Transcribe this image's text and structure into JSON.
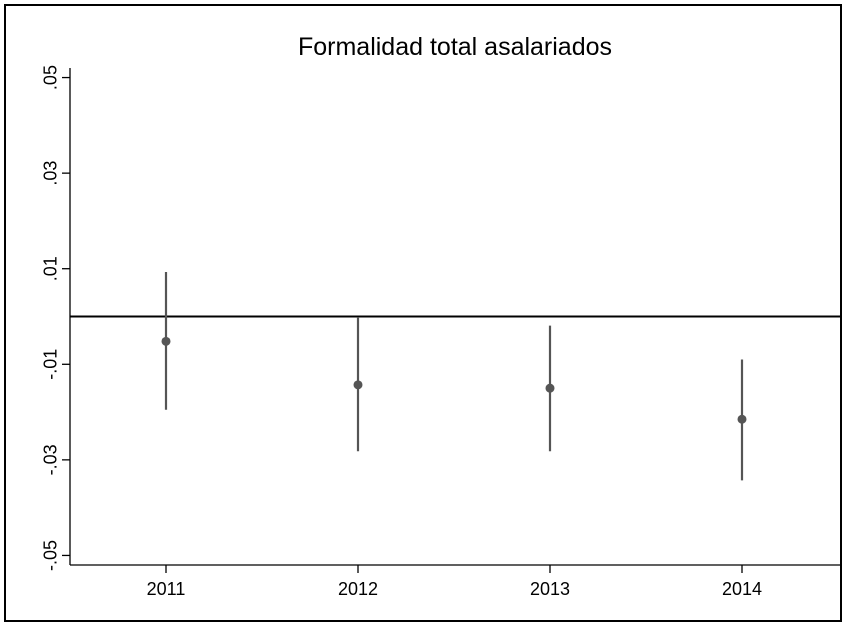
{
  "chart_data": {
    "type": "scatter",
    "title": "Formalidad total asalariados",
    "xlabel": "",
    "ylabel": "",
    "categories": [
      "2011",
      "2012",
      "2013",
      "2014"
    ],
    "y_tick_labels": [
      ".05",
      ".03",
      ".01",
      "-.01",
      "-.03",
      "-.05"
    ],
    "y_ticks": [
      0.05,
      0.03,
      0.01,
      -0.01,
      -0.03,
      -0.05
    ],
    "ylim": [
      -0.052,
      0.052
    ],
    "reference_line": 0.0,
    "grid": false,
    "legend": "none",
    "series": [
      {
        "estimate": [
          -0.0052,
          -0.0143,
          -0.015,
          -0.0215
        ],
        "ci_low": [
          -0.0195,
          -0.0282,
          -0.0282,
          -0.0343
        ],
        "ci_high": [
          0.0093,
          -0.0001,
          -0.0019,
          -0.009
        ]
      }
    ],
    "colors": {
      "marker": "#555555",
      "whisker": "#555555",
      "reference_line": "#000000",
      "axis": "#000000"
    }
  }
}
